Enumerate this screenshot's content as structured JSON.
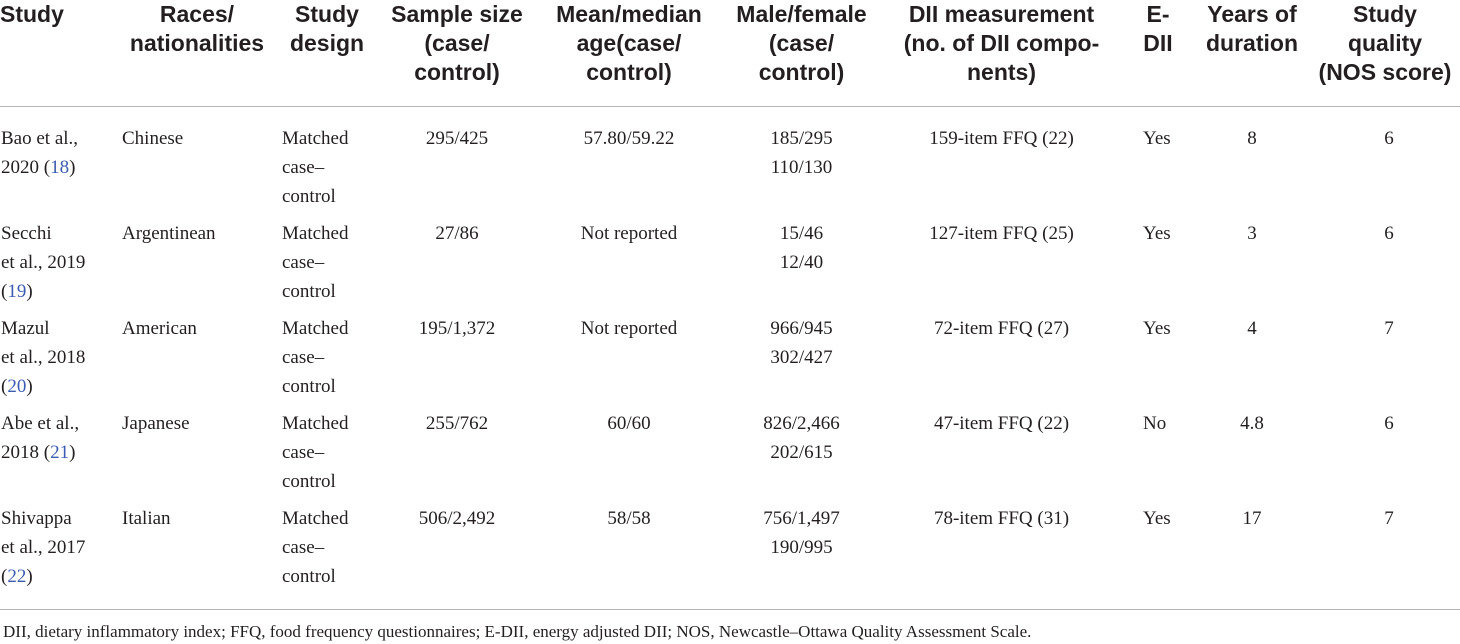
{
  "headers": [
    {
      "id": "study",
      "lines": [
        "Study"
      ]
    },
    {
      "id": "races",
      "lines": [
        "Races/",
        "nationalities"
      ]
    },
    {
      "id": "design",
      "lines": [
        "Study",
        "design"
      ]
    },
    {
      "id": "sample",
      "lines": [
        "Sample size",
        "(case/",
        "control)"
      ]
    },
    {
      "id": "age",
      "lines": [
        "Mean/median",
        "age(case/",
        "control)"
      ]
    },
    {
      "id": "sex",
      "lines": [
        "Male/female",
        "(case/",
        "control)"
      ]
    },
    {
      "id": "dii",
      "lines": [
        "DII measurement",
        "(no. of DII compo-",
        "nents)"
      ]
    },
    {
      "id": "edii",
      "lines": [
        "E-",
        "DII"
      ]
    },
    {
      "id": "years",
      "lines": [
        "Years of",
        "duration"
      ]
    },
    {
      "id": "quality",
      "lines": [
        "Study",
        "quality",
        "(NOS score)"
      ]
    }
  ],
  "rows": [
    {
      "study": [
        "Bao et al.,",
        "2020 ("
      ],
      "ref": "18",
      "study_close": ")",
      "races": "Chinese",
      "design": [
        "Matched",
        "case–",
        "control"
      ],
      "sample": "295/425",
      "age": "57.80/59.22",
      "sex": [
        "185/295",
        "110/130"
      ],
      "dii": "159-item FFQ (22)",
      "edii": "Yes",
      "years": "8",
      "quality": "6"
    },
    {
      "study": [
        "Secchi",
        "et al., 2019",
        "("
      ],
      "ref": "19",
      "study_close": ")",
      "races": "Argentinean",
      "design": [
        "Matched",
        "case–",
        "control"
      ],
      "sample": "27/86",
      "age": "Not reported",
      "sex": [
        "15/46",
        "12/40"
      ],
      "dii": "127-item FFQ (25)",
      "edii": "Yes",
      "years": "3",
      "quality": "6"
    },
    {
      "study": [
        "Mazul",
        "et al., 2018",
        "("
      ],
      "ref": "20",
      "study_close": ")",
      "races": "American",
      "design": [
        "Matched",
        "case–",
        "control"
      ],
      "sample": "195/1,372",
      "age": "Not reported",
      "sex": [
        "966/945",
        "302/427"
      ],
      "dii": "72-item FFQ (27)",
      "edii": "Yes",
      "years": "4",
      "quality": "7"
    },
    {
      "study": [
        "Abe et al.,",
        "2018 ("
      ],
      "ref": "21",
      "study_close": ")",
      "races": "Japanese",
      "design": [
        "Matched",
        "case–",
        "control"
      ],
      "sample": "255/762",
      "age": "60/60",
      "sex": [
        "826/2,466",
        "202/615"
      ],
      "dii": "47-item FFQ (22)",
      "edii": "No",
      "years": "4.8",
      "quality": "6"
    },
    {
      "study": [
        "Shivappa",
        "et al., 2017",
        "("
      ],
      "ref": "22",
      "study_close": ")",
      "races": "Italian",
      "design": [
        "Matched",
        "case–",
        "control"
      ],
      "sample": "506/2,492",
      "age": "58/58",
      "sex": [
        "756/1,497",
        "190/995"
      ],
      "dii": "78-item FFQ (31)",
      "edii": "Yes",
      "years": "17",
      "quality": "7"
    }
  ],
  "footnote": "DII, dietary inflammatory index; FFQ, food frequency questionnaires; E-DII, energy adjusted DII; NOS, Newcastle–Ottawa Quality Assessment Scale."
}
